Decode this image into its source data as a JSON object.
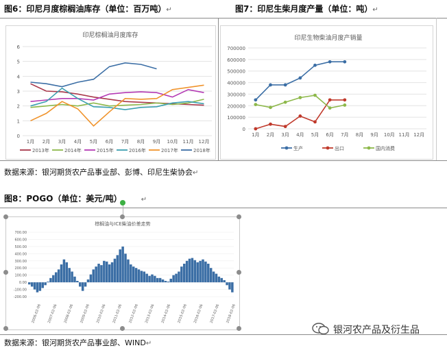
{
  "fig6": {
    "caption": "图6：印尼月度棕榈油库存（单位：百万吨）",
    "chart_data": {
      "type": "line",
      "title": "印尼棕榈油月度库存",
      "categories": [
        "1月",
        "2月",
        "3月",
        "4月",
        "5月",
        "6月",
        "7月",
        "8月",
        "9月",
        "10月",
        "11月",
        "12月"
      ],
      "ylim": [
        0,
        6
      ],
      "yticks": [
        "0",
        "1",
        "2",
        "3",
        "4",
        "5",
        "6"
      ],
      "grid": true,
      "legend_position": "bottom",
      "series": [
        {
          "name": "2013年",
          "color": "#a8374a",
          "values": [
            3.5,
            3.0,
            2.95,
            2.8,
            2.6,
            2.45,
            2.3,
            2.25,
            2.2,
            2.15,
            2.1,
            2.05
          ]
        },
        {
          "name": "2014年",
          "color": "#8db84a",
          "values": [
            1.9,
            2.0,
            2.1,
            2.0,
            2.2,
            2.0,
            2.05,
            2.1,
            2.2,
            2.1,
            2.2,
            2.45
          ]
        },
        {
          "name": "2015年",
          "color": "#b43ab4",
          "values": [
            2.3,
            2.4,
            2.5,
            2.5,
            2.4,
            2.8,
            2.9,
            2.95,
            2.9,
            2.6,
            3.1,
            2.9
          ]
        },
        {
          "name": "2016年",
          "color": "#3b9fb0",
          "values": [
            2.0,
            2.3,
            3.2,
            2.5,
            1.95,
            1.9,
            1.75,
            1.9,
            1.95,
            2.2,
            2.3,
            2.15
          ]
        },
        {
          "name": "2017年",
          "color": "#f0932b",
          "values": [
            1.0,
            1.5,
            2.3,
            1.8,
            0.65,
            1.6,
            2.5,
            2.45,
            2.5,
            3.1,
            3.25,
            3.4
          ]
        },
        {
          "name": "2018年",
          "color": "#3b6ea5",
          "values": [
            3.6,
            3.5,
            3.3,
            3.6,
            3.8,
            4.65,
            4.9,
            4.8,
            4.5,
            null,
            null,
            null
          ]
        }
      ]
    }
  },
  "fig7": {
    "caption": "图7：印尼生柴月度产量（单位：吨）",
    "chart_data": {
      "type": "line",
      "title": "印尼生物柴油月度产销量",
      "categories": [
        "1月",
        "2月",
        "3月",
        "4月",
        "5月",
        "6月",
        "7月",
        "8月",
        "9月",
        "10月",
        "11月",
        "12月"
      ],
      "ylim": [
        0,
        700000
      ],
      "yticks": [
        "0",
        "100000",
        "200000",
        "300000",
        "400000",
        "500000",
        "600000",
        "700000"
      ],
      "grid": true,
      "legend_position": "bottom",
      "series": [
        {
          "name": "生产",
          "color": "#3b6ea5",
          "values": [
            250000,
            380000,
            380000,
            440000,
            550000,
            580000,
            580000,
            null,
            null,
            null,
            null,
            null
          ]
        },
        {
          "name": "出口",
          "color": "#c0392b",
          "values": [
            0,
            40000,
            20000,
            110000,
            60000,
            250000,
            250000,
            null,
            null,
            null,
            null,
            null
          ]
        },
        {
          "name": "国内消费",
          "color": "#8db84a",
          "values": [
            210000,
            185000,
            230000,
            270000,
            290000,
            180000,
            205000,
            null,
            null,
            null,
            null,
            null
          ]
        }
      ]
    }
  },
  "source1": "数据来源：银河期货农产品事业部、彭博、印尼生柴协会",
  "fig8": {
    "caption": "图8：POGO（单位：美元/吨）",
    "chart_data": {
      "type": "bar",
      "title": "棕榈油与ICE柴油价差走势",
      "ylim": [
        -200,
        700
      ],
      "yticks": [
        "700.00",
        "600.00",
        "500.00",
        "400.00",
        "300.00",
        "200.00",
        "100.00",
        "0.00",
        "-100.00",
        "-200.00"
      ],
      "xticks": [
        "2006-02-06",
        "2007-02-06",
        "2008-02-06",
        "2009-02-06",
        "2010-02-06",
        "2011-02-06",
        "2012-02-06",
        "2013-02-06",
        "2014-02-06",
        "2015-02-06",
        "2016-02-06",
        "2017-02-06",
        "2018-02-06"
      ],
      "color": "#3b6ea5",
      "values": [
        -30,
        -60,
        -100,
        -140,
        -120,
        -80,
        -40,
        10,
        60,
        100,
        140,
        180,
        250,
        320,
        280,
        200,
        150,
        80,
        20,
        -60,
        -120,
        -60,
        40,
        110,
        180,
        220,
        260,
        240,
        300,
        290,
        250,
        280,
        330,
        380,
        460,
        500,
        400,
        320,
        250,
        220,
        200,
        180,
        160,
        150,
        120,
        90,
        110,
        90,
        60,
        60,
        40,
        20,
        10,
        50,
        100,
        120,
        150,
        220,
        260,
        300,
        330,
        340,
        310,
        280,
        300,
        320,
        290,
        260,
        200,
        150,
        120,
        80,
        60,
        30,
        -40,
        -100,
        -140
      ]
    }
  },
  "source2": "数据来源：银河期货农产品事业部、WIND",
  "watermark": "银河农产品及衍生品",
  "return_mark": "↵"
}
